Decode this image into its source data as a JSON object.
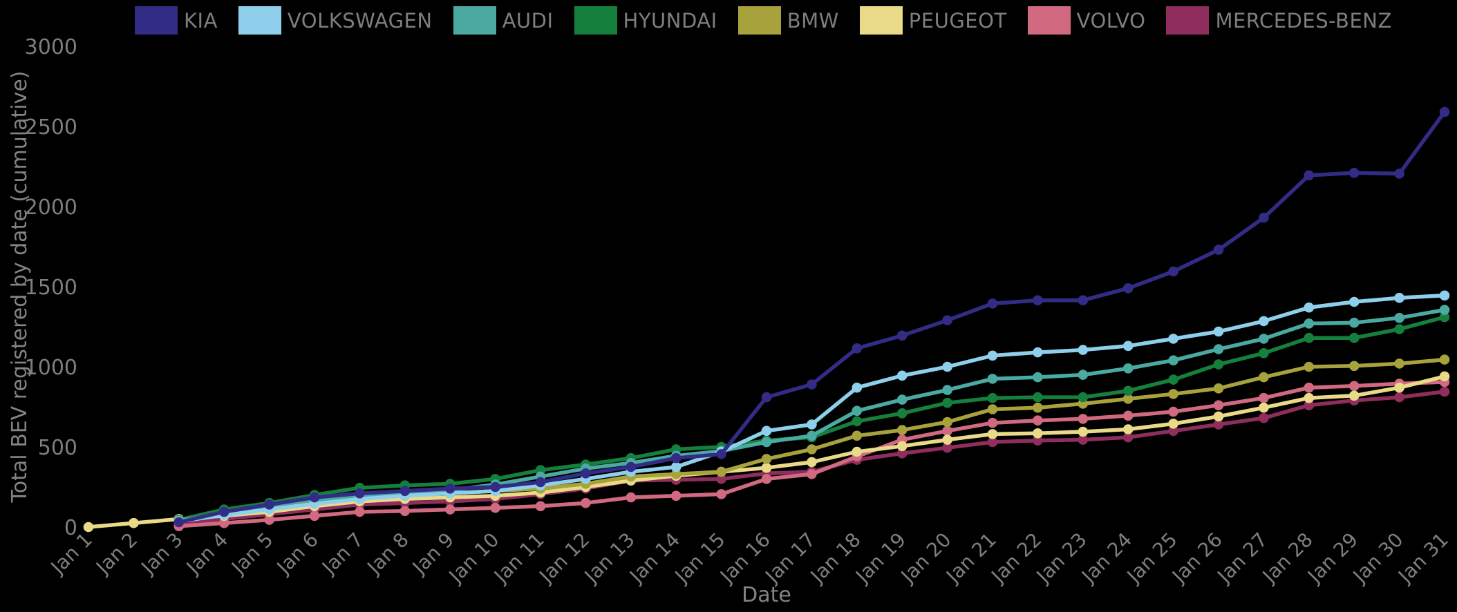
{
  "chart_data": {
    "type": "line",
    "title": "",
    "xlabel": "Date",
    "ylabel": "Total BEV registered by date (cumulative)",
    "legend_position": "top",
    "grid": false,
    "background_color": "#000000",
    "text_color": "#7e7e7e",
    "ylim": [
      0,
      3000
    ],
    "y_ticks": [
      0,
      500,
      1000,
      1500,
      2000,
      2500,
      3000
    ],
    "x_labels": [
      "Jan 1",
      "Jan 2",
      "Jan 3",
      "Jan 4",
      "Jan 5",
      "Jan 6",
      "Jan 7",
      "Jan 8",
      "Jan 9",
      "Jan 10",
      "Jan 11",
      "Jan 12",
      "Jan 13",
      "Jan 14",
      "Jan 15",
      "Jan 16",
      "Jan 17",
      "Jan 18",
      "Jan 19",
      "Jan 20",
      "Jan 21",
      "Jan 22",
      "Jan 23",
      "Jan 24",
      "Jan 25",
      "Jan 26",
      "Jan 27",
      "Jan 28",
      "Jan 29",
      "Jan 30",
      "Jan 31"
    ],
    "series": [
      {
        "name": "KIA",
        "color": "#332c87",
        "values": [
          null,
          null,
          30,
          95,
          140,
          185,
          210,
          225,
          240,
          250,
          280,
          335,
          375,
          430,
          455,
          810,
          890,
          1115,
          1195,
          1290,
          1395,
          1415,
          1415,
          1490,
          1595,
          1730,
          1930,
          2195,
          2210,
          2205,
          2590
        ]
      },
      {
        "name": "VOLKSWAGEN",
        "color": "#8ed0ec",
        "values": [
          null,
          null,
          35,
          75,
          110,
          145,
          175,
          195,
          210,
          225,
          260,
          300,
          345,
          375,
          470,
          600,
          640,
          870,
          945,
          1000,
          1070,
          1090,
          1105,
          1130,
          1175,
          1220,
          1285,
          1370,
          1405,
          1430,
          1445
        ]
      },
      {
        "name": "AUDI",
        "color": "#4aa9a0",
        "values": [
          null,
          null,
          40,
          85,
          125,
          160,
          195,
          210,
          230,
          265,
          315,
          365,
          400,
          445,
          475,
          530,
          570,
          725,
          795,
          855,
          925,
          935,
          950,
          990,
          1040,
          1110,
          1175,
          1270,
          1275,
          1305,
          1355
        ]
      },
      {
        "name": "HYUNDAI",
        "color": "#15803d",
        "values": [
          null,
          null,
          45,
          110,
          150,
          200,
          245,
          260,
          270,
          300,
          355,
          390,
          430,
          485,
          500,
          540,
          560,
          660,
          710,
          775,
          805,
          810,
          810,
          850,
          920,
          1015,
          1085,
          1180,
          1180,
          1235,
          1310
        ]
      },
      {
        "name": "BMW",
        "color": "#a7a23c",
        "values": [
          null,
          null,
          40,
          80,
          120,
          155,
          185,
          200,
          210,
          225,
          240,
          270,
          315,
          330,
          345,
          425,
          485,
          570,
          605,
          655,
          735,
          745,
          770,
          800,
          830,
          865,
          935,
          1000,
          1005,
          1020,
          1045
        ]
      },
      {
        "name": "PEUGEOT",
        "color": "#e9da88",
        "values": [
          0,
          25,
          50,
          70,
          95,
          130,
          160,
          175,
          185,
          195,
          215,
          250,
          290,
          320,
          345,
          370,
          405,
          470,
          505,
          545,
          580,
          585,
          595,
          610,
          645,
          690,
          745,
          805,
          820,
          870,
          940
        ]
      },
      {
        "name": "VOLVO",
        "color": "#d16981",
        "values": [
          null,
          null,
          5,
          25,
          45,
          70,
          95,
          100,
          110,
          120,
          130,
          150,
          185,
          195,
          205,
          300,
          330,
          440,
          545,
          600,
          650,
          665,
          675,
          695,
          720,
          760,
          805,
          870,
          880,
          895,
          905
        ]
      },
      {
        "name": "MERCEDES-BENZ",
        "color": "#8f2e5c",
        "values": [
          null,
          null,
          20,
          50,
          80,
          110,
          140,
          150,
          160,
          175,
          205,
          240,
          290,
          295,
          300,
          335,
          345,
          420,
          460,
          495,
          530,
          540,
          545,
          560,
          600,
          640,
          680,
          760,
          790,
          810,
          845
        ]
      }
    ]
  }
}
